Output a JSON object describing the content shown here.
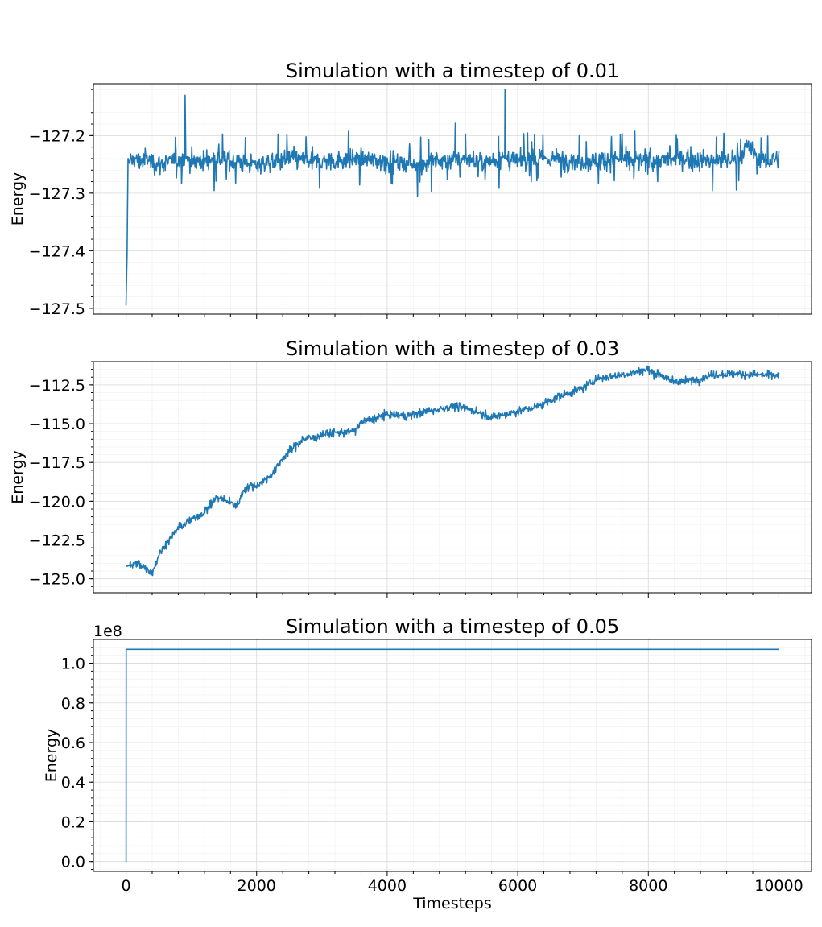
{
  "chart_data": [
    {
      "type": "line",
      "title": "Simulation with a timestep of 0.01",
      "xlabel": "",
      "ylabel": "Energy",
      "xlim": [
        -500,
        10500
      ],
      "ylim": [
        -127.51,
        -127.11
      ],
      "x_ticks": [
        0,
        2000,
        4000,
        6000,
        8000,
        10000
      ],
      "y_ticks": [
        -127.5,
        -127.4,
        -127.3,
        -127.2
      ],
      "y_tick_labels": [
        "−127.5",
        "−127.4",
        "−127.3",
        "−127.2"
      ],
      "show_x_tick_labels": false,
      "grid": true,
      "color": "#1f77b4",
      "series": [
        {
          "x": [
            0,
            15,
            30,
            60,
            100,
            200,
            300,
            500,
            700,
            900,
            905,
            915,
            1100,
            1400,
            1700,
            2000,
            2500,
            3000,
            3500,
            4000,
            4500,
            5000,
            5500,
            5800,
            5805,
            5815,
            6000,
            6500,
            7000,
            7500,
            8000,
            8500,
            9000,
            9400,
            9500,
            9800,
            10000
          ],
          "y": [
            -127.495,
            -127.41,
            -127.24,
            -127.25,
            -127.24,
            -127.245,
            -127.24,
            -127.25,
            -127.245,
            -127.24,
            -127.13,
            -127.24,
            -127.245,
            -127.24,
            -127.245,
            -127.25,
            -127.24,
            -127.245,
            -127.24,
            -127.245,
            -127.25,
            -127.24,
            -127.245,
            -127.24,
            -127.12,
            -127.24,
            -127.245,
            -127.24,
            -127.245,
            -127.24,
            -127.245,
            -127.24,
            -127.245,
            -127.24,
            -127.22,
            -127.245,
            -127.24
          ]
        }
      ]
    },
    {
      "type": "line",
      "title": "Simulation with a timestep of 0.03",
      "xlabel": "",
      "ylabel": "Energy",
      "xlim": [
        -500,
        10500
      ],
      "ylim": [
        -125.9,
        -111.0
      ],
      "x_ticks": [
        0,
        2000,
        4000,
        6000,
        8000,
        10000
      ],
      "y_ticks": [
        -125.0,
        -122.5,
        -120.0,
        -117.5,
        -115.0,
        -112.5
      ],
      "y_tick_labels": [
        "−125.0",
        "−122.5",
        "−120.0",
        "−117.5",
        "−115.0",
        "−112.5"
      ],
      "show_x_tick_labels": false,
      "grid": true,
      "color": "#1f77b4",
      "series": [
        {
          "x": [
            0,
            200,
            400,
            500,
            600,
            700,
            800,
            1000,
            1200,
            1400,
            1600,
            1700,
            1800,
            1900,
            2000,
            2200,
            2300,
            2400,
            2500,
            2600,
            2700,
            2900,
            3000,
            3200,
            3500,
            3600,
            3800,
            4000,
            4300,
            4500,
            5000,
            5300,
            5600,
            6000,
            6300,
            6600,
            7000,
            7200,
            7500,
            7800,
            8000,
            8100,
            8200,
            8300,
            8500,
            8800,
            9000,
            9500,
            10000
          ],
          "y": [
            -124.2,
            -124.0,
            -124.6,
            -123.5,
            -122.8,
            -122.3,
            -121.7,
            -121.2,
            -120.7,
            -119.7,
            -120.1,
            -120.3,
            -119.3,
            -119.0,
            -119.0,
            -118.4,
            -117.9,
            -117.2,
            -116.8,
            -116.4,
            -116.0,
            -115.9,
            -115.7,
            -115.6,
            -115.5,
            -114.9,
            -114.7,
            -114.4,
            -114.5,
            -114.3,
            -113.9,
            -114.1,
            -114.6,
            -114.2,
            -113.9,
            -113.3,
            -112.7,
            -112.1,
            -111.9,
            -111.7,
            -111.5,
            -111.8,
            -111.8,
            -112.2,
            -112.3,
            -112.1,
            -111.8,
            -111.8,
            -111.9
          ]
        }
      ]
    },
    {
      "type": "line",
      "title": "Simulation with a timestep of 0.05",
      "xlabel": "Timesteps",
      "ylabel": "Energy",
      "offset_text": "1e8",
      "xlim": [
        -500,
        10500
      ],
      "ylim": [
        -0.05,
        1.12
      ],
      "x_ticks": [
        0,
        2000,
        4000,
        6000,
        8000,
        10000
      ],
      "x_tick_labels": [
        "0",
        "2000",
        "4000",
        "6000",
        "8000",
        "10000"
      ],
      "y_ticks": [
        0.0,
        0.2,
        0.4,
        0.6,
        0.8,
        1.0
      ],
      "y_tick_labels": [
        "0.0",
        "0.2",
        "0.4",
        "0.6",
        "0.8",
        "1.0"
      ],
      "show_x_tick_labels": true,
      "grid": true,
      "color": "#1f77b4",
      "series": [
        {
          "x": [
            0,
            1,
            2,
            10000
          ],
          "y": [
            0.0,
            0.0,
            1.07,
            1.07
          ]
        }
      ]
    }
  ]
}
